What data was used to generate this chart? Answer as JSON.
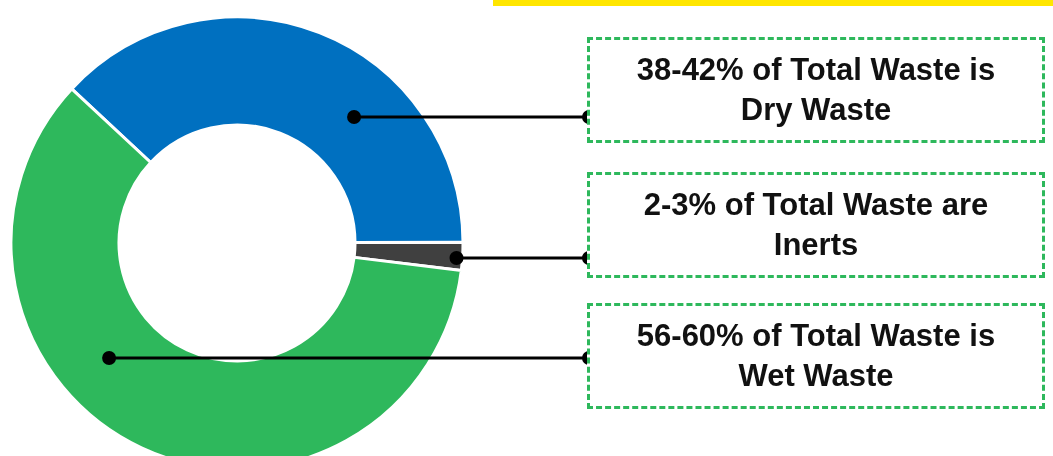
{
  "chart_data": {
    "type": "donut",
    "categories": [
      null,
      null,
      null
    ],
    "values": [
      38,
      2,
      60
    ],
    "colors": [
      "#0070c0",
      "#404040",
      "#2eb85c"
    ],
    "annotations": [
      "38-42% of Total Waste is Dry Waste",
      "2-3% of Total Waste are Inerts",
      "56-60% of Total Waste is Wet Waste"
    ]
  }
}
